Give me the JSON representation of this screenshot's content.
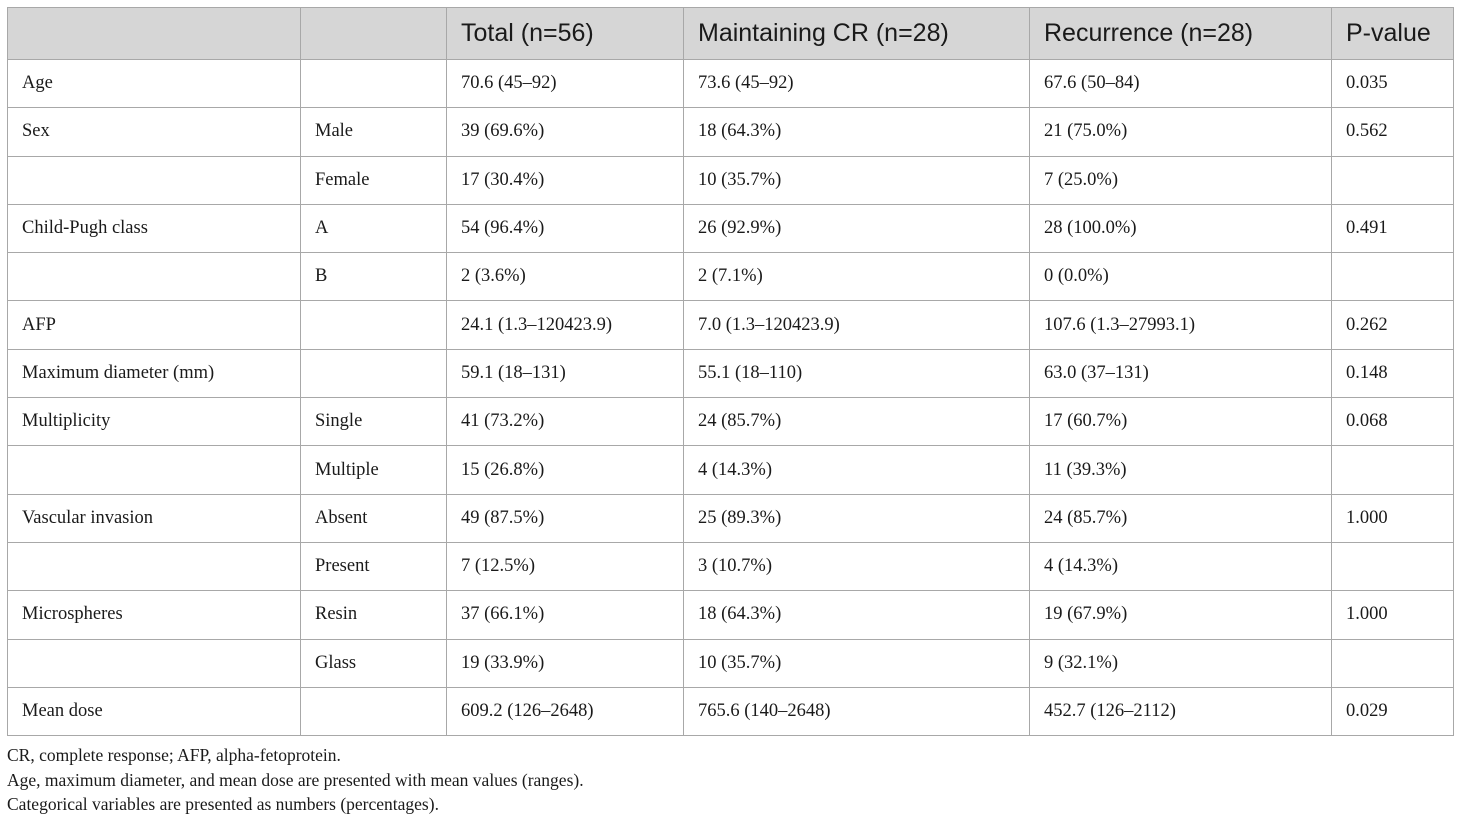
{
  "table": {
    "headers": [
      "",
      "",
      "Total (n=56)",
      "Maintaining CR (n=28)",
      "Recurrence (n=28)",
      "P-value"
    ],
    "rows": [
      [
        "Age",
        "",
        "70.6 (45–92)",
        "73.6 (45–92)",
        "67.6 (50–84)",
        "0.035"
      ],
      [
        "Sex",
        "Male",
        "39 (69.6%)",
        "18 (64.3%)",
        "21 (75.0%)",
        "0.562"
      ],
      [
        "",
        "Female",
        "17 (30.4%)",
        "10 (35.7%)",
        "7 (25.0%)",
        ""
      ],
      [
        "Child-Pugh class",
        "A",
        "54 (96.4%)",
        "26 (92.9%)",
        "28 (100.0%)",
        "0.491"
      ],
      [
        "",
        "B",
        "2 (3.6%)",
        "2 (7.1%)",
        "0 (0.0%)",
        ""
      ],
      [
        "AFP",
        "",
        "24.1 (1.3–120423.9)",
        "7.0 (1.3–120423.9)",
        "107.6 (1.3–27993.1)",
        "0.262"
      ],
      [
        "Maximum diameter (mm)",
        "",
        "59.1 (18–131)",
        "55.1 (18–110)",
        "63.0 (37–131)",
        "0.148"
      ],
      [
        "Multiplicity",
        "Single",
        "41 (73.2%)",
        "24 (85.7%)",
        "17 (60.7%)",
        "0.068"
      ],
      [
        "",
        "Multiple",
        "15 (26.8%)",
        "4 (14.3%)",
        "11 (39.3%)",
        ""
      ],
      [
        "Vascular invasion",
        "Absent",
        "49 (87.5%)",
        "25 (89.3%)",
        "24 (85.7%)",
        "1.000"
      ],
      [
        "",
        "Present",
        "7 (12.5%)",
        "3 (10.7%)",
        "4 (14.3%)",
        ""
      ],
      [
        "Microspheres",
        "Resin",
        "37 (66.1%)",
        "18 (64.3%)",
        "19 (67.9%)",
        "1.000"
      ],
      [
        "",
        "Glass",
        "19 (33.9%)",
        "10 (35.7%)",
        "9 (32.1%)",
        ""
      ],
      [
        "Mean dose",
        "",
        "609.2 (126–2648)",
        "765.6 (140–2648)",
        "452.7 (126–2112)",
        "0.029"
      ]
    ]
  },
  "footnotes": [
    "CR, complete response; AFP, alpha-fetoprotein.",
    "Age, maximum diameter, and mean dose are presented with mean values (ranges).",
    "Categorical variables are presented as numbers (percentages)."
  ],
  "colors": {
    "header_background": "#d6d6d6",
    "border": "#a8a8a8",
    "text": "#1a1a1a"
  }
}
